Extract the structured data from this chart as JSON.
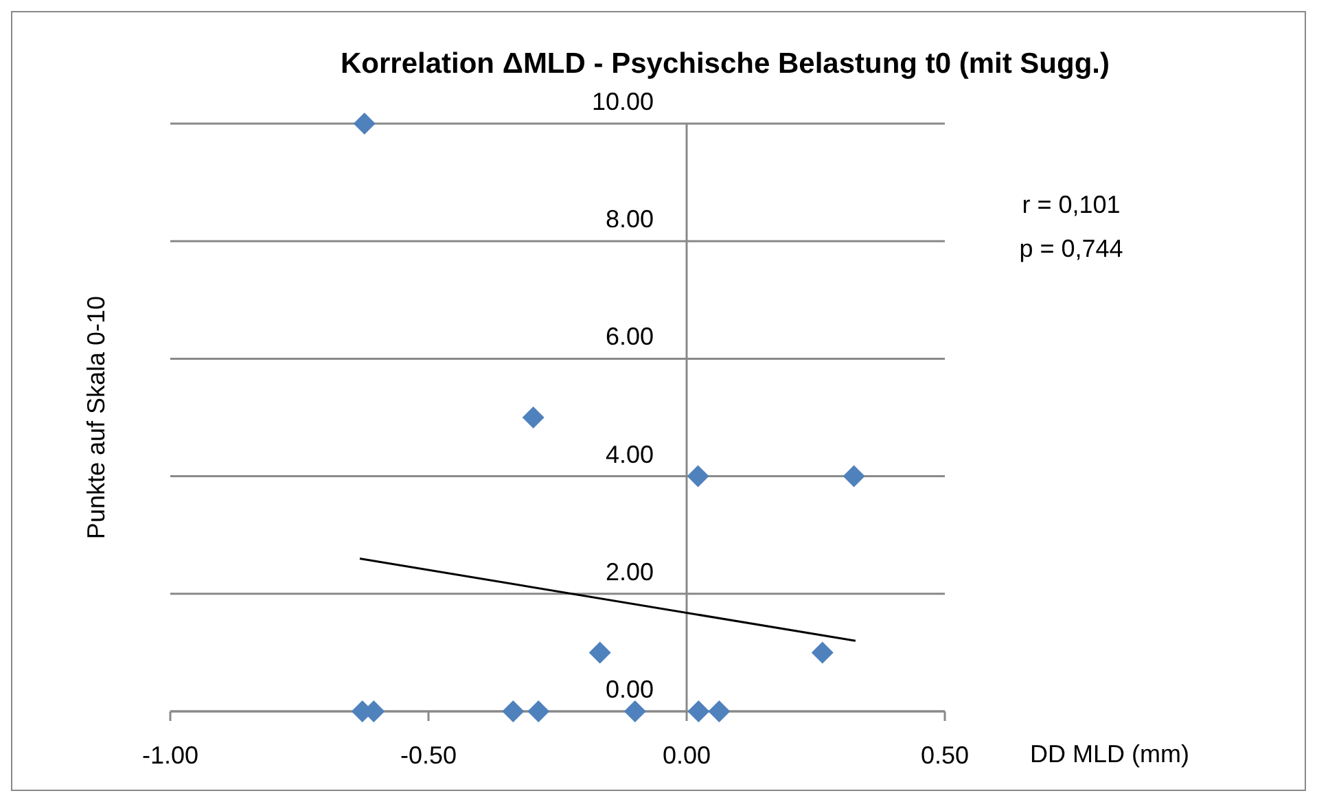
{
  "chart_data": {
    "type": "scatter",
    "title": "Korrelation ΔMLD - Psychische Belastung t0 (mit Sugg.)",
    "xlabel": "DD MLD  (mm)",
    "ylabel": "Punkte auf Skala 0-10",
    "annotations": [
      "r = 0,101",
      "p = 0,744"
    ],
    "xlim": [
      -1,
      0.5
    ],
    "xticks": [
      {
        "value": -1,
        "label": "-1.00"
      },
      {
        "value": -0.5,
        "label": "-0.50"
      },
      {
        "value": 0,
        "label": "0.00"
      },
      {
        "value": 0.5,
        "label": "0.50"
      }
    ],
    "ylim": [
      0,
      10
    ],
    "yticks": [
      {
        "value": 0,
        "label": "0.00"
      },
      {
        "value": 2,
        "label": "2.00"
      },
      {
        "value": 4,
        "label": "4.00"
      },
      {
        "value": 6,
        "label": "6.00"
      },
      {
        "value": 8,
        "label": "8.00"
      },
      {
        "value": 10,
        "label": "10.00"
      }
    ],
    "grid": "y",
    "marker": "diamond",
    "series": [
      {
        "color": "#4f81bd",
        "x": [
          -0.624,
          -0.297,
          0.022,
          0.324,
          -0.168,
          0.263,
          -0.628,
          -0.606,
          -0.336,
          -0.287,
          -0.1,
          0.023,
          0.063
        ],
        "values": [
          10,
          5,
          4,
          4,
          1,
          1,
          0,
          0,
          0,
          0,
          0,
          0,
          0
        ]
      },
      {
        "type": "line",
        "color": "#000000",
        "x": [
          -0.633,
          0.327
        ],
        "values": [
          2.6,
          1.2
        ],
        "marker": "none"
      }
    ]
  }
}
